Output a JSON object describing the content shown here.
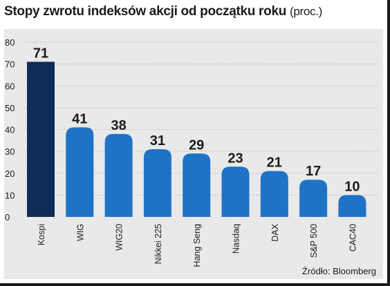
{
  "title": "Stopy zwrotu indeksów akcji od początku roku",
  "unit": "(proc.)",
  "source": "Źródło: Bloomberg",
  "colors": {
    "highlight": "#0d2c57",
    "bar": "#1f73c7",
    "panel": "#e9e9e9"
  },
  "chart_data": {
    "type": "bar",
    "categories": [
      "Kospi",
      "WIG",
      "WIG20",
      "Nikkei 225",
      "Hang Seng",
      "Nasdaq",
      "DAX",
      "S&P 500",
      "CAC40"
    ],
    "values": [
      71,
      41,
      38,
      31,
      29,
      23,
      21,
      17,
      10
    ],
    "value_labels": [
      "71",
      "41",
      "38",
      "31",
      "29",
      "23",
      "21",
      "17",
      "10"
    ],
    "highlight_index": 0,
    "ylim": [
      0,
      80
    ],
    "yticks": [
      0,
      10,
      20,
      30,
      40,
      50,
      60,
      70,
      80
    ],
    "ytick_labels": [
      "0",
      "10",
      "20",
      "30",
      "40",
      "50",
      "60",
      "70",
      "80"
    ],
    "grid": true
  }
}
